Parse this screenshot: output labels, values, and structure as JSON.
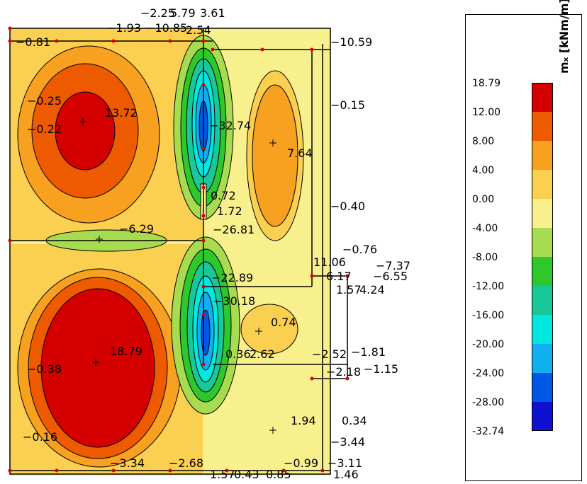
{
  "legend": {
    "unit_label": "mₓ [kNm/m]",
    "ticks": [
      "18.79",
      "12.00",
      "8.00",
      "4.00",
      "0.00",
      "-4.00",
      "-8.00",
      "-12.00",
      "-16.00",
      "-20.00",
      "-24.00",
      "-28.00",
      "-32.74"
    ],
    "colors": [
      "#d40000",
      "#ee5a00",
      "#f8a020",
      "#fbd050",
      "#f8f08c",
      "#a8dc50",
      "#2ec82c",
      "#18c898",
      "#00e8e0",
      "#10b0f0",
      "#0058e6",
      "#1010d0"
    ]
  },
  "labels": [
    {
      "id": "v1",
      "text": "−2.25"
    },
    {
      "id": "v2",
      "text": "5.79"
    },
    {
      "id": "v3",
      "text": "3.61"
    },
    {
      "id": "v4",
      "text": "−1.93"
    },
    {
      "id": "v5",
      "text": "−10.85"
    },
    {
      "id": "v6",
      "text": "2.54"
    },
    {
      "id": "v7",
      "text": "−0.81"
    },
    {
      "id": "v8",
      "text": "−10.59"
    },
    {
      "id": "v9",
      "text": "−0.25"
    },
    {
      "id": "v10",
      "text": "13.72"
    },
    {
      "id": "v11",
      "text": "−0.22"
    },
    {
      "id": "v12",
      "text": "−32.74"
    },
    {
      "id": "v13",
      "text": "−0.15"
    },
    {
      "id": "v14",
      "text": "7.64"
    },
    {
      "id": "v15",
      "text": "0.72"
    },
    {
      "id": "v16",
      "text": "1.72"
    },
    {
      "id": "v17",
      "text": "−0.40"
    },
    {
      "id": "v18",
      "text": "−6.29"
    },
    {
      "id": "v19",
      "text": "−26.81"
    },
    {
      "id": "v20",
      "text": "−0.76"
    },
    {
      "id": "v21",
      "text": "11.06"
    },
    {
      "id": "v22",
      "text": "−7.37"
    },
    {
      "id": "v23",
      "text": "−22.89"
    },
    {
      "id": "v24",
      "text": "6.17"
    },
    {
      "id": "v25",
      "text": "−6.55"
    },
    {
      "id": "v26",
      "text": "1.57"
    },
    {
      "id": "v27",
      "text": "4.24"
    },
    {
      "id": "v28",
      "text": "−30.18"
    },
    {
      "id": "v29",
      "text": "0.74"
    },
    {
      "id": "v30",
      "text": "−0.38"
    },
    {
      "id": "v31",
      "text": "18.79"
    },
    {
      "id": "v32",
      "text": "0.36"
    },
    {
      "id": "v33",
      "text": "2.62"
    },
    {
      "id": "v34",
      "text": "−2.52"
    },
    {
      "id": "v35",
      "text": "−1.81"
    },
    {
      "id": "v36",
      "text": "−2.18"
    },
    {
      "id": "v37",
      "text": "−1.15"
    },
    {
      "id": "v38",
      "text": "1.94"
    },
    {
      "id": "v39",
      "text": "0.34"
    },
    {
      "id": "v40",
      "text": "−0.16"
    },
    {
      "id": "v41",
      "text": "−3.44"
    },
    {
      "id": "v42",
      "text": "−3.34"
    },
    {
      "id": "v43",
      "text": "−2.68"
    },
    {
      "id": "v44",
      "text": "−0.99"
    },
    {
      "id": "v45",
      "text": "−3.11"
    },
    {
      "id": "v46",
      "text": "1.57"
    },
    {
      "id": "v47",
      "text": "0.43"
    },
    {
      "id": "v48",
      "text": "0.85"
    },
    {
      "id": "v49",
      "text": "1.46"
    }
  ]
}
